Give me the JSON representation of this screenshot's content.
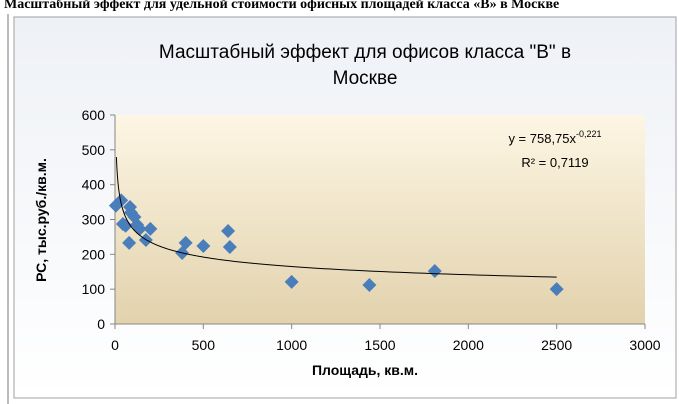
{
  "caption": "Масштабный эффект для удельной стоимости офисных площадей класса «В» в Москве",
  "chart_data": {
    "type": "scatter",
    "title": "Масштабный эффект для офисов класса \"В\" в Москве",
    "x_label": "Площадь, кв.м.",
    "y_label": "РС, тыс.руб./кв.м.",
    "color": "#4a7ebb",
    "x": [
      5,
      35,
      45,
      60,
      80,
      85,
      90,
      110,
      125,
      140,
      175,
      200,
      380,
      400,
      500,
      640,
      650,
      1000,
      1440,
      1810,
      2500
    ],
    "values": [
      340,
      355,
      287,
      282,
      233,
      336,
      320,
      307,
      285,
      273,
      241,
      273,
      204,
      233,
      224,
      267,
      221,
      121,
      112,
      152,
      100
    ],
    "xlim": [
      0,
      3000
    ],
    "xticks": [
      0,
      500,
      1000,
      1500,
      2000,
      2500,
      3000
    ],
    "ylim": [
      0,
      600
    ],
    "yticks": [
      0,
      100,
      200,
      300,
      400,
      500,
      600
    ],
    "trendline": {
      "a": 758.75,
      "b": -0.221,
      "xrange": [
        8,
        2500
      ],
      "label": "y = 758,75x",
      "exponent": "-0,221",
      "r2_label": "R² = 0,7119"
    }
  }
}
